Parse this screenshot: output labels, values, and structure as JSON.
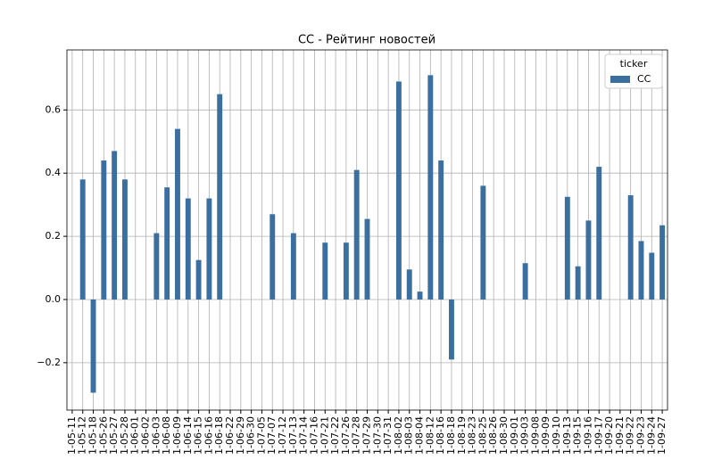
{
  "chart_data": {
    "type": "bar",
    "title": "CC - Рейтинг новостей",
    "categories": [
      "1-05-11",
      "1-05-12",
      "1-05-18",
      "1-05-26",
      "1-05-27",
      "1-05-28",
      "1-06-01",
      "1-06-02",
      "1-06-03",
      "1-06-08",
      "1-06-09",
      "1-06-14",
      "1-06-15",
      "1-06-16",
      "1-06-18",
      "1-06-22",
      "1-06-29",
      "1-06-30",
      "1-07-05",
      "1-07-07",
      "1-07-12",
      "1-07-13",
      "1-07-14",
      "1-07-16",
      "1-07-21",
      "1-07-22",
      "1-07-26",
      "1-07-28",
      "1-07-29",
      "1-07-30",
      "1-07-31",
      "1-08-02",
      "1-08-03",
      "1-08-04",
      "1-08-12",
      "1-08-16",
      "1-08-18",
      "1-08-19",
      "1-08-23",
      "1-08-25",
      "1-08-26",
      "1-08-30",
      "1-09-01",
      "1-09-03",
      "1-09-08",
      "1-09-09",
      "1-09-10",
      "1-09-13",
      "1-09-15",
      "1-09-16",
      "1-09-17",
      "1-09-20",
      "1-09-21",
      "1-09-22",
      "1-09-23",
      "1-09-24",
      "1-09-27"
    ],
    "series": [
      {
        "name": "CC",
        "color": "#3b6fa0",
        "values": [
          null,
          0.38,
          -0.295,
          0.44,
          0.47,
          0.38,
          null,
          null,
          0.21,
          0.355,
          0.54,
          0.32,
          0.125,
          0.32,
          0.65,
          null,
          null,
          null,
          null,
          0.27,
          null,
          0.21,
          null,
          null,
          0.18,
          null,
          0.18,
          0.41,
          0.255,
          null,
          null,
          0.69,
          0.095,
          0.025,
          0.71,
          0.44,
          -0.19,
          null,
          null,
          0.36,
          null,
          null,
          null,
          0.115,
          null,
          null,
          null,
          0.325,
          0.105,
          0.25,
          0.42,
          null,
          null,
          0.33,
          0.185,
          0.148,
          0.235
        ]
      }
    ],
    "legend_title": "ticker",
    "legend": "upper right",
    "ylim": [
      -0.35,
      0.79
    ],
    "yticks": [
      {
        "value": -0.2,
        "label": "−0.2"
      },
      {
        "value": 0,
        "label": "0.0"
      },
      {
        "value": 0.2,
        "label": "0.2"
      },
      {
        "value": 0.4,
        "label": "0.4"
      },
      {
        "value": 0.6,
        "label": "0.6"
      }
    ],
    "grid": true
  }
}
